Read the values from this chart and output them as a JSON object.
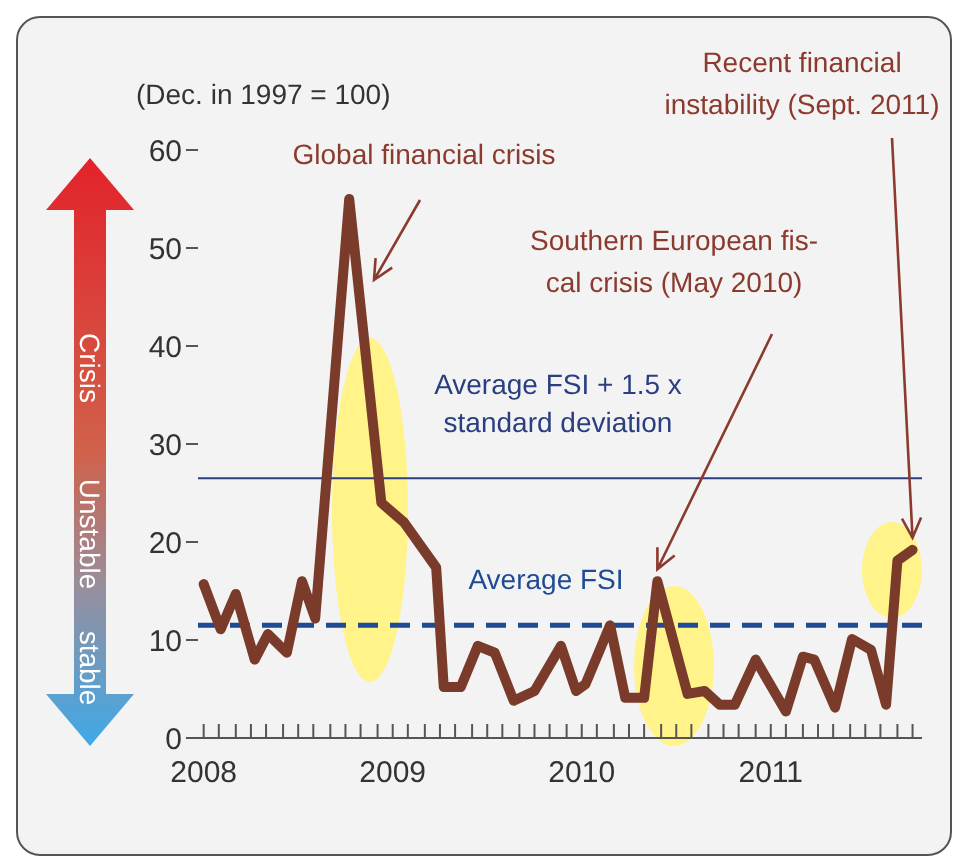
{
  "chart_data": {
    "type": "line",
    "ylabel": "(Dec. in 1997 = 100)",
    "x": [
      2008.0,
      2008.09,
      2008.17,
      2008.27,
      2008.34,
      2008.44,
      2008.52,
      2008.59,
      2008.77,
      2008.94,
      2009.06,
      2009.23,
      2009.27,
      2009.36,
      2009.45,
      2009.54,
      2009.64,
      2009.75,
      2009.89,
      2009.97,
      2010.02,
      2010.15,
      2010.23,
      2010.33,
      2010.4,
      2010.56,
      2010.65,
      2010.73,
      2010.81,
      2010.92,
      2011.08,
      2011.17,
      2011.23,
      2011.34,
      2011.43,
      2011.53,
      2011.61,
      2011.67,
      2011.75
    ],
    "series": [
      {
        "color": "#7a3b2b",
        "values": [
          15.7,
          11.1,
          14.7,
          8.0,
          10.6,
          8.7,
          16.0,
          12.2,
          55,
          24,
          22,
          17.4,
          5.2,
          5.2,
          9.4,
          8.7,
          3.8,
          4.8,
          9.4,
          4.8,
          5.5,
          11.5,
          4.1,
          4.1,
          16.0,
          4.5,
          4.8,
          3.4,
          3.4,
          8.0,
          2.7,
          8.3,
          8.0,
          3.1,
          10.1,
          9.0,
          3.4,
          18.1,
          19.2
        ]
      }
    ],
    "xlim": [
      2007.97,
      2011.8
    ],
    "xticks": [
      2008,
      {
        "value": 2008.08,
        "label": null
      },
      {
        "value": 2008.17,
        "label": null
      },
      {
        "value": 2008.25,
        "label": null
      },
      {
        "value": 2008.33,
        "label": null
      },
      {
        "value": 2008.42,
        "label": null
      },
      {
        "value": 2008.5,
        "label": null
      },
      {
        "value": 2008.58,
        "label": null
      },
      {
        "value": 2008.67,
        "label": null
      },
      {
        "value": 2008.75,
        "label": null
      },
      {
        "value": 2008.83,
        "label": null
      },
      {
        "value": 2008.92,
        "label": null
      },
      2009,
      {
        "value": 2009.08,
        "label": null
      },
      {
        "value": 2009.17,
        "label": null
      },
      {
        "value": 2009.25,
        "label": null
      },
      {
        "value": 2009.33,
        "label": null
      },
      {
        "value": 2009.42,
        "label": null
      },
      {
        "value": 2009.5,
        "label": null
      },
      {
        "value": 2009.58,
        "label": null
      },
      {
        "value": 2009.67,
        "label": null
      },
      {
        "value": 2009.75,
        "label": null
      },
      {
        "value": 2009.83,
        "label": null
      },
      {
        "value": 2009.92,
        "label": null
      },
      2010,
      {
        "value": 2010.08,
        "label": null
      },
      {
        "value": 2010.17,
        "label": null
      },
      {
        "value": 2010.25,
        "label": null
      },
      {
        "value": 2010.33,
        "label": null
      },
      {
        "value": 2010.42,
        "label": null
      },
      {
        "value": 2010.5,
        "label": null
      },
      {
        "value": 2010.58,
        "label": null
      },
      {
        "value": 2010.67,
        "label": null
      },
      {
        "value": 2010.75,
        "label": null
      },
      {
        "value": 2010.83,
        "label": null
      },
      {
        "value": 2010.92,
        "label": null
      },
      2011,
      {
        "value": 2011.08,
        "label": null
      },
      {
        "value": 2011.17,
        "label": null
      },
      {
        "value": 2011.25,
        "label": null
      },
      {
        "value": 2011.33,
        "label": null
      },
      {
        "value": 2011.42,
        "label": null
      },
      {
        "value": 2011.5,
        "label": null
      },
      {
        "value": 2011.58,
        "label": null
      },
      {
        "value": 2011.67,
        "label": null
      },
      {
        "value": 2011.75,
        "label": null
      }
    ],
    "ylim": [
      0,
      60
    ],
    "yticks": [
      0,
      10,
      20,
      30,
      40,
      50,
      60
    ],
    "ref_lines": [
      {
        "axis": "y",
        "value": 26.5,
        "label": "Average FSI + 1.5 x\nstandard deviation",
        "color": "#2b3f80",
        "line_style": "solid"
      },
      {
        "axis": "y",
        "value": 11.5,
        "label": "Average FSI",
        "color": "#1f4a94",
        "line_style": "dashed"
      }
    ],
    "annotations": [
      "Global financial crisis",
      {
        "text": "Southern European fis-\ncal crisis (May 2010)",
        "x": 2010.4,
        "y": 16
      },
      {
        "text": "Recent financial\ninstability (Sept. 2011)",
        "x": 2011.75,
        "y": 19.2
      },
      "Crisis",
      "Unstable",
      "stable"
    ],
    "grid": false,
    "legend": false,
    "marker": "none",
    "line_style": "solid"
  }
}
